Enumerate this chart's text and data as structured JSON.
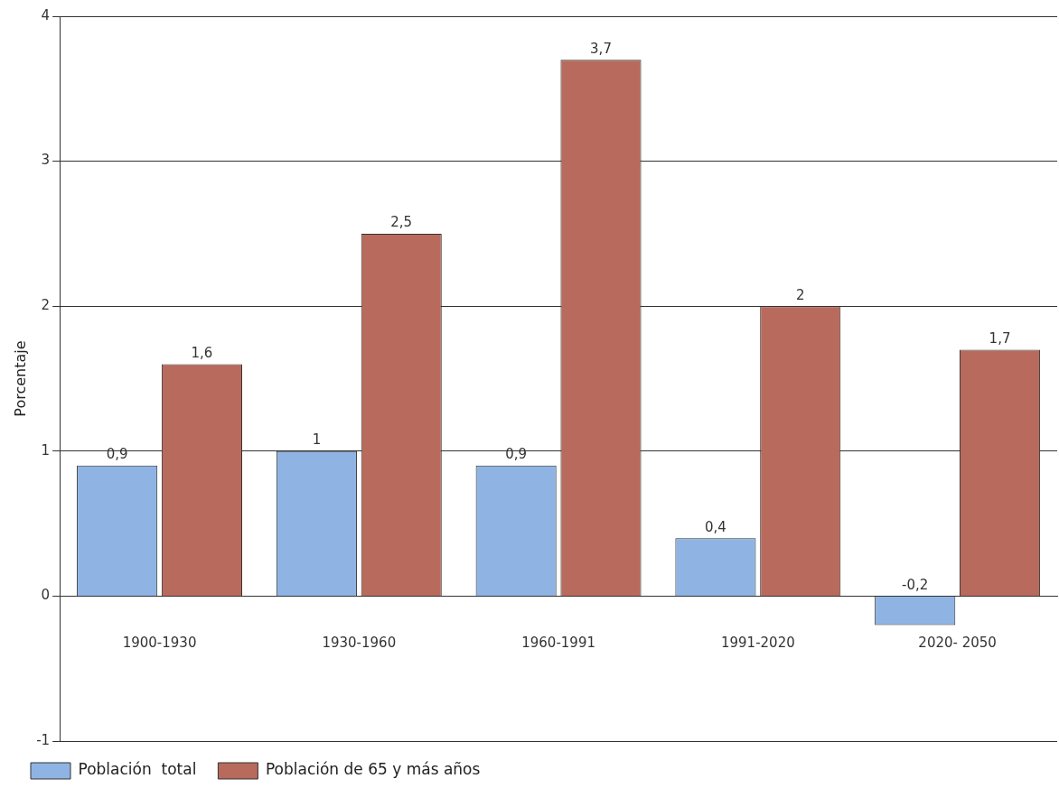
{
  "chart_data": {
    "type": "bar",
    "ylabel": "Porcentaje",
    "categories": [
      "1900-1930",
      "1930-1960",
      "1960-1991",
      "1991-2020",
      "2020- 2050"
    ],
    "series": [
      {
        "name": "Población  total",
        "color": "#8fb4e3",
        "values": [
          0.9,
          1,
          0.9,
          0.4,
          -0.2
        ],
        "value_labels": [
          "0,9",
          "1",
          "0,9",
          "0,4",
          "-0,2"
        ]
      },
      {
        "name": "Población de 65 y más años",
        "color": "#b86a5c",
        "values": [
          1.6,
          2.5,
          3.7,
          2,
          1.7
        ],
        "value_labels": [
          "1,6",
          "2,5",
          "3,7",
          "2",
          "1,7"
        ]
      }
    ],
    "ylim": [
      -1,
      4
    ],
    "yticks": [
      -1,
      0,
      1,
      2,
      3,
      4
    ],
    "grid": "y",
    "legend": "bottom left"
  }
}
